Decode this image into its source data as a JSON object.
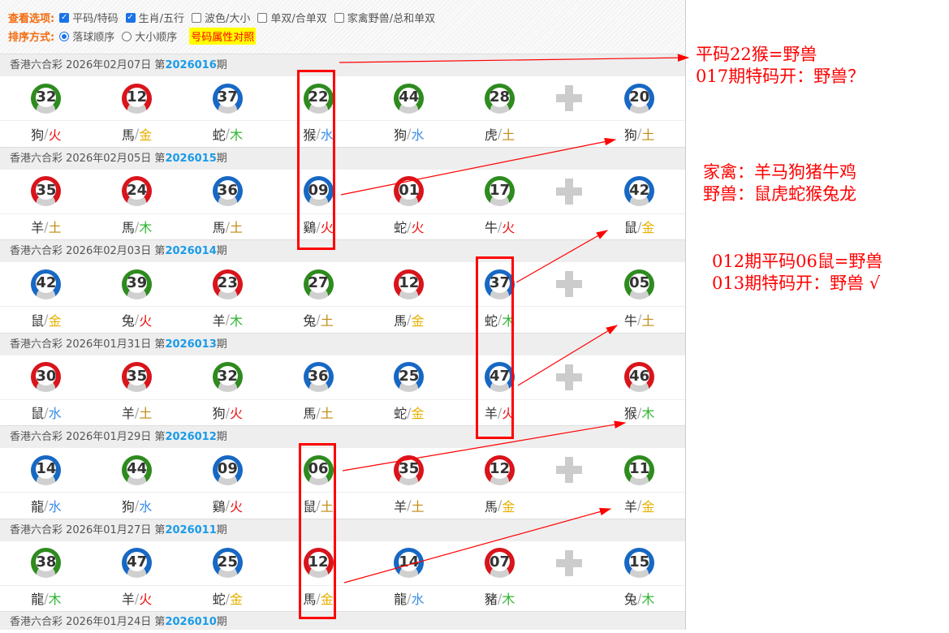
{
  "options": {
    "view_label": "查看选项:",
    "view_items": [
      {
        "label": "平码/特码",
        "checked": true
      },
      {
        "label": "生肖/五行",
        "checked": true
      },
      {
        "label": "波色/大小",
        "checked": false
      },
      {
        "label": "单双/合单双",
        "checked": false
      },
      {
        "label": "家禽野兽/总和单双",
        "checked": false
      }
    ],
    "sort_label": "排序方式:",
    "sort_items": [
      {
        "label": "落球顺序",
        "selected": true
      },
      {
        "label": "大小顺序",
        "selected": false
      }
    ],
    "compare_link": "号码属性对照"
  },
  "colors": {
    "red": "#d9141b",
    "green": "#2e8b1e",
    "blue": "#1768c4",
    "火": "#f01010",
    "金": "#e8b000",
    "木": "#2fb52f",
    "水": "#3a8ee6",
    "土": "#c08a10"
  },
  "draws": [
    {
      "prefix": "香港六合彩 2026年02月07日 第",
      "period": "2026016",
      "suffix": "期",
      "balls": [
        [
          "32",
          "green",
          "狗",
          "火"
        ],
        [
          "12",
          "red",
          "馬",
          "金"
        ],
        [
          "37",
          "blue",
          "蛇",
          "木"
        ],
        [
          "22",
          "green",
          "猴",
          "水"
        ],
        [
          "44",
          "green",
          "狗",
          "水"
        ],
        [
          "28",
          "green",
          "虎",
          "土"
        ],
        [
          "20",
          "blue",
          "狗",
          "土"
        ]
      ]
    },
    {
      "prefix": "香港六合彩 2026年02月05日 第",
      "period": "2026015",
      "suffix": "期",
      "balls": [
        [
          "35",
          "red",
          "羊",
          "土"
        ],
        [
          "24",
          "red",
          "馬",
          "木"
        ],
        [
          "36",
          "blue",
          "馬",
          "土"
        ],
        [
          "09",
          "blue",
          "鷄",
          "火"
        ],
        [
          "01",
          "red",
          "蛇",
          "火"
        ],
        [
          "17",
          "green",
          "牛",
          "火"
        ],
        [
          "42",
          "blue",
          "鼠",
          "金"
        ]
      ]
    },
    {
      "prefix": "香港六合彩 2026年02月03日 第",
      "period": "2026014",
      "suffix": "期",
      "balls": [
        [
          "42",
          "blue",
          "鼠",
          "金"
        ],
        [
          "39",
          "green",
          "兔",
          "火"
        ],
        [
          "23",
          "red",
          "羊",
          "木"
        ],
        [
          "27",
          "green",
          "兔",
          "土"
        ],
        [
          "12",
          "red",
          "馬",
          "金"
        ],
        [
          "37",
          "blue",
          "蛇",
          "木"
        ],
        [
          "05",
          "green",
          "牛",
          "土"
        ]
      ]
    },
    {
      "prefix": "香港六合彩 2026年01月31日 第",
      "period": "2026013",
      "suffix": "期",
      "balls": [
        [
          "30",
          "red",
          "鼠",
          "水"
        ],
        [
          "35",
          "red",
          "羊",
          "土"
        ],
        [
          "32",
          "green",
          "狗",
          "火"
        ],
        [
          "36",
          "blue",
          "馬",
          "土"
        ],
        [
          "25",
          "blue",
          "蛇",
          "金"
        ],
        [
          "47",
          "blue",
          "羊",
          "火"
        ],
        [
          "46",
          "red",
          "猴",
          "木"
        ]
      ]
    },
    {
      "prefix": "香港六合彩 2026年01月29日 第",
      "period": "2026012",
      "suffix": "期",
      "balls": [
        [
          "14",
          "blue",
          "龍",
          "水"
        ],
        [
          "44",
          "green",
          "狗",
          "水"
        ],
        [
          "09",
          "blue",
          "鷄",
          "火"
        ],
        [
          "06",
          "green",
          "鼠",
          "土"
        ],
        [
          "35",
          "red",
          "羊",
          "土"
        ],
        [
          "12",
          "red",
          "馬",
          "金"
        ],
        [
          "11",
          "green",
          "羊",
          "金"
        ]
      ]
    },
    {
      "prefix": "香港六合彩 2026年01月27日 第",
      "period": "2026011",
      "suffix": "期",
      "balls": [
        [
          "38",
          "green",
          "龍",
          "木"
        ],
        [
          "47",
          "blue",
          "羊",
          "火"
        ],
        [
          "25",
          "blue",
          "蛇",
          "金"
        ],
        [
          "12",
          "red",
          "馬",
          "金"
        ],
        [
          "14",
          "blue",
          "龍",
          "水"
        ],
        [
          "07",
          "red",
          "豬",
          "木"
        ],
        [
          "15",
          "blue",
          "兔",
          "木"
        ]
      ]
    },
    {
      "prefix": "香港六合彩 2026年01月24日 第",
      "period": "2026010",
      "suffix": "期",
      "balls": []
    }
  ],
  "annotations": [
    "平码22猴=野兽",
    "017期特码开：野兽？",
    "家禽：羊马狗猪牛鸡",
    "野兽：鼠虎蛇猴兔龙",
    "012期平码06鼠=野兽",
    "013期特码开：野兽 √"
  ]
}
